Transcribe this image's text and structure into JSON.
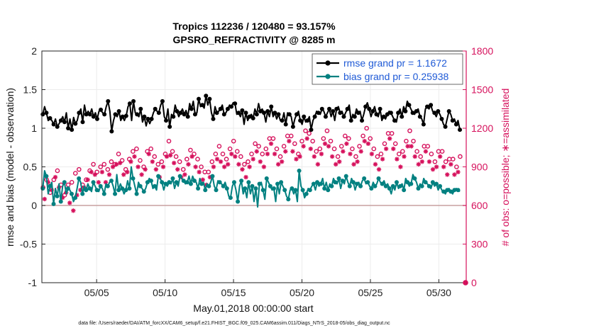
{
  "chart_data": {
    "type": "line",
    "title": [
      "Tropics 112236 / 120480 = 93.157%",
      "GPSRO_REFRACTIVITY @ 8285 m"
    ],
    "xlabel": "May.01,2018 00:00:00 start",
    "ylabel_left": "rmse and bias (model - observation)",
    "ylabel_right": "# of obs: o=possible; ∗=assimilated",
    "footnote": "data file: /Users/raeder/DAI/ATM_forcXX/CAM6_setup/f.e21.FHIST_BGC.f09_025.CAM6assim.011/Diags_NTrS_2018-05/obs_diag_output.nc",
    "x_range": [
      1,
      32
    ],
    "x_ticks": [
      5,
      10,
      15,
      20,
      25,
      30
    ],
    "x_tick_labels": [
      "05/05",
      "05/10",
      "05/15",
      "05/20",
      "05/25",
      "05/30"
    ],
    "ylim_left": [
      -1,
      2
    ],
    "y_ticks_left": [
      -1,
      -0.5,
      0,
      0.5,
      1,
      1.5,
      2
    ],
    "y_tick_labels_left": [
      "-1",
      "-0.5",
      "0",
      "0.5",
      "1",
      "1.5",
      "2"
    ],
    "ylim_right": [
      0,
      1800
    ],
    "y_ticks_right": [
      0,
      300,
      600,
      900,
      1200,
      1500,
      1800
    ],
    "y_tick_labels_right": [
      "0",
      "300",
      "600",
      "900",
      "1200",
      "1500",
      "1800"
    ],
    "zero_line": 0,
    "colors": {
      "rmse": "#000000",
      "bias": "#008080",
      "obs": "#d6115c",
      "legend_text": "#1f5ad6",
      "zero_line": "#c8a0a0"
    },
    "series": [
      {
        "name": "rmse grand pr = 1.1672",
        "axis": "left",
        "color": "#000000",
        "values": [
          1.18,
          1.28,
          1.2,
          1.1,
          1.13,
          1.1,
          1.05,
          1.12,
          1.02,
          1.06,
          1.1,
          1.15,
          1.08,
          1.2,
          1.0,
          1.12,
          0.98,
          1.14,
          1.06,
          1.1,
          1.2,
          1.25,
          1.08,
          1.3,
          1.18,
          1.22,
          1.18,
          1.25,
          1.15,
          1.2,
          1.12,
          1.22,
          1.24,
          1.2,
          1.18,
          1.28,
          1.35,
          1.22,
          0.96,
          1.1,
          1.18,
          1.15,
          1.22,
          1.1,
          1.15,
          1.1,
          1.16,
          1.28,
          1.32,
          1.1,
          1.35,
          1.2,
          1.18,
          1.15,
          1.25,
          1.08,
          1.15,
          1.03,
          1.12,
          1.06,
          1.12,
          1.2,
          1.25,
          1.22,
          1.2,
          1.3,
          1.35,
          1.15,
          1.1,
          1.25,
          1.02,
          1.18,
          1.15,
          1.3,
          1.22,
          1.15,
          1.2,
          1.25,
          1.18,
          1.23,
          1.15,
          1.32,
          1.25,
          1.35,
          1.18,
          1.2,
          1.38,
          1.28,
          1.3,
          1.26,
          1.42,
          1.3,
          1.38,
          1.2,
          1.12,
          1.28,
          1.2,
          1.22,
          1.25,
          1.3,
          1.18,
          1.2,
          1.25,
          1.3,
          1.28,
          1.33,
          1.32,
          1.18,
          1.2,
          1.15,
          1.23,
          1.05,
          1.2,
          1.1,
          1.15,
          1.18,
          1.13,
          1.25,
          1.18,
          1.32,
          1.22,
          1.25,
          1.2,
          1.08,
          1.22,
          1.15,
          1.28,
          1.15,
          1.2,
          1.12,
          1.18,
          1.1,
          1.1,
          1.2,
          1.05,
          1.2,
          1.18,
          1.15,
          1.02,
          1.12,
          1.18,
          1.22,
          1.1,
          1.05,
          1.15,
          1.08,
          1.1,
          1.15,
          0.98,
          1.1,
          1.15,
          1.22,
          1.2,
          1.18,
          1.25,
          1.22,
          1.15,
          1.2,
          1.25,
          1.15,
          1.22,
          1.1,
          1.25,
          1.28,
          1.2,
          1.22,
          1.15,
          1.2,
          1.25,
          1.3,
          1.1,
          1.18,
          1.15,
          1.25,
          1.2,
          1.22,
          1.1,
          1.18,
          1.28,
          1.33,
          1.25,
          1.15,
          1.22,
          1.28,
          1.18,
          1.15,
          1.25,
          1.1,
          1.15,
          1.12,
          1.18,
          1.22,
          1.2,
          1.15,
          1.1,
          1.08,
          1.2,
          1.25,
          1.15,
          1.28,
          1.22,
          1.35,
          1.3,
          1.25,
          1.2,
          1.18,
          1.22,
          1.25,
          1.15,
          1.12,
          1.05,
          1.25,
          1.28,
          1.25,
          1.3,
          1.22,
          1.2,
          1.15,
          1.22,
          1.18,
          1.12,
          1.05,
          1.02,
          1.12,
          1.22,
          1.18,
          1.1,
          1.12,
          1.05,
          1.1,
          0.98
        ]
      },
      {
        "name": "bias grand pr = 0.25938",
        "axis": "left",
        "color": "#008080",
        "values": [
          0.22,
          0.45,
          0.38,
          0.15,
          0.25,
          0.3,
          0.02,
          0.22,
          0.12,
          0.28,
          0.05,
          0.25,
          0.3,
          0.15,
          0.22,
          0.2,
          0.15,
          0.05,
          0.1,
          0.22,
          0.35,
          0.3,
          0.15,
          0.25,
          0.2,
          0.28,
          0.22,
          0.18,
          0.3,
          0.25,
          0.2,
          0.18,
          0.25,
          0.22,
          0.15,
          0.28,
          0.25,
          0.3,
          0.32,
          0.25,
          0.15,
          0.4,
          0.2,
          0.28,
          0.22,
          0.15,
          0.2,
          0.32,
          0.22,
          0.5,
          0.35,
          0.25,
          0.15,
          0.3,
          0.25,
          0.22,
          0.18,
          0.22,
          0.3,
          0.35,
          0.32,
          0.22,
          0.25,
          0.2,
          0.38,
          0.35,
          0.3,
          0.2,
          0.28,
          0.25,
          0.3,
          0.28,
          0.35,
          0.22,
          0.3,
          0.25,
          0.38,
          0.35,
          0.32,
          0.28,
          0.3,
          0.38,
          0.28,
          0.38,
          0.32,
          0.3,
          0.22,
          0.35,
          0.28,
          0.3,
          0.2,
          0.28,
          0.25,
          0.3,
          0.38,
          0.25,
          0.2,
          0.32,
          0.3,
          0.28,
          0.25,
          0.3,
          0.22,
          0.12,
          0.1,
          0.25,
          0.3,
          0.2,
          0.05,
          0.25,
          0.32,
          0.15,
          0.22,
          0.1,
          0.3,
          0.15,
          0.25,
          0.05,
          0.22,
          -0.02,
          0.28,
          0.3,
          0.2,
          0.08,
          0.35,
          0.3,
          0.25,
          0.2,
          0.22,
          0.05,
          0.28,
          0.15,
          0.3,
          0.25,
          0.2,
          0.12,
          0.08,
          0.2,
          0.22,
          0.15,
          0.2,
          0.05,
          0.45,
          0.25,
          0.2,
          0.1,
          0.15,
          0.22,
          0.2,
          0.25,
          0.28,
          0.2,
          0.3,
          0.25,
          0.28,
          0.35,
          0.22,
          0.3,
          0.2,
          0.28,
          0.25,
          0.35,
          0.3,
          0.28,
          0.35,
          0.22,
          0.32,
          0.28,
          0.38,
          0.3,
          0.25,
          0.35,
          0.3,
          0.2,
          0.28,
          0.3,
          0.25,
          0.32,
          0.35,
          0.28,
          0.3,
          0.25,
          0.22,
          0.3,
          0.25,
          0.28,
          0.35,
          0.3,
          0.28,
          0.32,
          0.25,
          0.28,
          0.22,
          0.15,
          0.25,
          0.2,
          0.3,
          0.22,
          0.25,
          0.28,
          0.2,
          0.35,
          0.3,
          0.25,
          0.28,
          0.4,
          0.35,
          0.3,
          0.22,
          0.28,
          0.25,
          0.35,
          0.3,
          0.28,
          0.25,
          0.22,
          0.3,
          0.25,
          0.28,
          0.2,
          0.25,
          0.2,
          0.18,
          0.15,
          0.2,
          0.22,
          0.18,
          0.15,
          0.2,
          0.22,
          0.2,
          0.18
        ]
      },
      {
        "name": "possible obs (o)",
        "axis": "right",
        "color": "#d6115c",
        "values": [
          740,
          720,
          800,
          820,
          700,
          760,
          800,
          850,
          870,
          790,
          760,
          720,
          680,
          800,
          760,
          740,
          780,
          800,
          850,
          900,
          880,
          910,
          760,
          780,
          800,
          820,
          870,
          900,
          920,
          880,
          860,
          840,
          900,
          910,
          920,
          850,
          880,
          900,
          940,
          960,
          920,
          980,
          1000,
          990,
          950,
          900,
          880,
          920,
          960,
          1000,
          1020,
          1050,
          1040,
          980,
          950,
          920,
          900,
          960,
          1020,
          1080,
          1040,
          1000,
          980,
          950,
          920,
          900,
          940,
          980,
          1000,
          1050,
          1100,
          1060,
          1020,
          1000,
          980,
          960,
          940,
          900,
          880,
          920,
          960,
          1000,
          1030,
          1050,
          1000,
          980,
          960,
          940,
          900,
          880,
          860,
          840,
          860,
          900,
          940,
          980,
          1000,
          1040,
          1060,
          1020,
          1000,
          980,
          960,
          1000,
          1040,
          1080,
          1100,
          1060,
          1020,
          1000,
          980,
          960,
          920,
          900,
          940,
          980,
          1000,
          1040,
          1080,
          1100,
          1060,
          1020,
          1000,
          980,
          1040,
          1080,
          1120,
          1160,
          1120,
          1080,
          1040,
          1000,
          980,
          1020,
          1060,
          1100,
          1140,
          1180,
          1140,
          1100,
          1080,
          1040,
          1000,
          1060,
          1100,
          1140,
          1180,
          1200,
          1160,
          1120,
          1100,
          1060,
          1020,
          1000,
          1040,
          1080,
          1120,
          1160,
          1180,
          1140,
          1100,
          1060,
          1040,
          1000,
          980,
          1020,
          1060,
          1100,
          1140,
          1160,
          1120,
          1080,
          1040,
          1000,
          980,
          1020,
          1060,
          1100,
          1140,
          1180,
          1200,
          1160,
          1120,
          1080,
          1040,
          1000,
          980,
          960,
          1000,
          1040,
          1080,
          1120,
          1160,
          1200,
          1160,
          1120,
          1080,
          1040,
          1000,
          980,
          1020,
          1060,
          1100,
          1140,
          1180,
          1140,
          1100,
          1060,
          1020,
          1000,
          980,
          1020,
          1060,
          1100,
          1060,
          1020,
          1000,
          960,
          940,
          980,
          1020,
          1060,
          1020,
          980,
          940,
          920,
          960,
          1000,
          960,
          920,
          900,
          940,
          980
        ]
      },
      {
        "name": "assimilated obs (∗)",
        "axis": "right",
        "color": "#d6115c",
        "values": [
          700,
          650,
          760,
          780,
          650,
          720,
          760,
          820,
          840,
          740,
          700,
          660,
          610,
          700,
          640,
          620,
          580,
          560,
          520,
          680,
          760,
          720,
          690,
          740,
          760,
          800,
          830,
          860,
          880,
          840,
          800,
          780,
          840,
          860,
          880,
          780,
          820,
          840,
          880,
          900,
          860,
          920,
          940,
          930,
          880,
          840,
          800,
          860,
          900,
          940,
          960,
          980,
          960,
          900,
          880,
          840,
          820,
          880,
          940,
          1000,
          980,
          940,
          920,
          880,
          840,
          820,
          860,
          900,
          940,
          980,
          1020,
          990,
          950,
          930,
          900,
          880,
          860,
          820,
          800,
          840,
          880,
          920,
          950,
          980,
          920,
          900,
          880,
          860,
          820,
          800,
          780,
          760,
          780,
          820,
          860,
          900,
          920,
          960,
          980,
          940,
          920,
          900,
          880,
          920,
          960,
          1000,
          1020,
          980,
          940,
          920,
          900,
          880,
          840,
          820,
          860,
          900,
          920,
          960,
          1000,
          1020,
          980,
          940,
          920,
          900,
          960,
          1000,
          1040,
          1080,
          1040,
          1000,
          960,
          920,
          900,
          940,
          980,
          1020,
          1060,
          1100,
          1060,
          1020,
          1000,
          960,
          920,
          980,
          1020,
          1060,
          1100,
          1120,
          1080,
          1040,
          1020,
          980,
          940,
          920,
          960,
          1000,
          1040,
          1080,
          1100,
          1060,
          1020,
          980,
          960,
          920,
          900,
          940,
          980,
          1020,
          1060,
          1080,
          1040,
          1000,
          960,
          920,
          900,
          940,
          980,
          1020,
          1060,
          1100,
          1120,
          1080,
          1040,
          1000,
          960,
          920,
          900,
          880,
          920,
          960,
          1000,
          1040,
          1080,
          1120,
          1080,
          1040,
          1000,
          960,
          920,
          900,
          940,
          980,
          1020,
          1060,
          1100,
          1060,
          1020,
          980,
          940,
          920,
          900,
          940,
          980,
          1020,
          980,
          940,
          920,
          880,
          860,
          900,
          940,
          980,
          940,
          900,
          860,
          840,
          880,
          920,
          880,
          840,
          820,
          860,
          900
        ]
      }
    ],
    "end_marker": {
      "x": 32,
      "y_right": 0
    }
  }
}
